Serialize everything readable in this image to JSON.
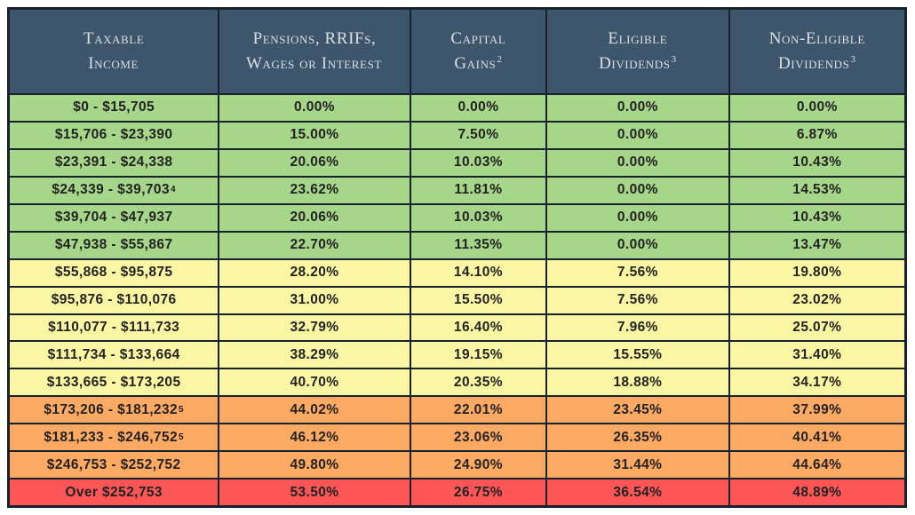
{
  "colors": {
    "header_bg": "#3e566c",
    "header_text": "#d9dfe4",
    "border": "#17222c",
    "band_green": "#a6d689",
    "band_yellow": "#fbf6a4",
    "band_orange": "#fca963",
    "band_red": "#fe5656",
    "data_text": "#222222",
    "page_bg": "#ffffff"
  },
  "chart_data": {
    "type": "table",
    "columns": [
      {
        "line1": "Taxable",
        "line2": "Income",
        "sup": ""
      },
      {
        "line1": "Pensions, RRIFs,",
        "line2": "Wages or Interest",
        "sup": ""
      },
      {
        "line1": "Capital",
        "line2": "Gains",
        "sup": "2"
      },
      {
        "line1": "Eligible",
        "line2": "Dividends",
        "sup": "3"
      },
      {
        "line1": "Non-Eligible",
        "line2": "Dividends",
        "sup": "3"
      }
    ],
    "rows": [
      {
        "band": "green",
        "income": "$0 - $15,705",
        "income_sup": "",
        "rates": [
          "0.00%",
          "0.00%",
          "0.00%",
          "0.00%"
        ]
      },
      {
        "band": "green",
        "income": "$15,706 - $23,390",
        "income_sup": "",
        "rates": [
          "15.00%",
          "7.50%",
          "0.00%",
          "6.87%"
        ]
      },
      {
        "band": "green",
        "income": "$23,391 - $24,338",
        "income_sup": "",
        "rates": [
          "20.06%",
          "10.03%",
          "0.00%",
          "10.43%"
        ]
      },
      {
        "band": "green",
        "income": "$24,339 - $39,703",
        "income_sup": "4",
        "rates": [
          "23.62%",
          "11.81%",
          "0.00%",
          "14.53%"
        ]
      },
      {
        "band": "green",
        "income": "$39,704 - $47,937",
        "income_sup": "",
        "rates": [
          "20.06%",
          "10.03%",
          "0.00%",
          "10.43%"
        ]
      },
      {
        "band": "green",
        "income": "$47,938 - $55,867",
        "income_sup": "",
        "rates": [
          "22.70%",
          "11.35%",
          "0.00%",
          "13.47%"
        ]
      },
      {
        "band": "yellow",
        "income": "$55,868 - $95,875",
        "income_sup": "",
        "rates": [
          "28.20%",
          "14.10%",
          "7.56%",
          "19.80%"
        ]
      },
      {
        "band": "yellow",
        "income": "$95,876 - $110,076",
        "income_sup": "",
        "rates": [
          "31.00%",
          "15.50%",
          "7.56%",
          "23.02%"
        ]
      },
      {
        "band": "yellow",
        "income": "$110,077 - $111,733",
        "income_sup": "",
        "rates": [
          "32.79%",
          "16.40%",
          "7.96%",
          "25.07%"
        ]
      },
      {
        "band": "yellow",
        "income": "$111,734 - $133,664",
        "income_sup": "",
        "rates": [
          "38.29%",
          "19.15%",
          "15.55%",
          "31.40%"
        ]
      },
      {
        "band": "yellow",
        "income": "$133,665 - $173,205",
        "income_sup": "",
        "rates": [
          "40.70%",
          "20.35%",
          "18.88%",
          "34.17%"
        ]
      },
      {
        "band": "orange",
        "income": "$173,206 - $181,232",
        "income_sup": "5",
        "rates": [
          "44.02%",
          "22.01%",
          "23.45%",
          "37.99%"
        ]
      },
      {
        "band": "orange",
        "income": "$181,233 - $246,752",
        "income_sup": "5",
        "rates": [
          "46.12%",
          "23.06%",
          "26.35%",
          "40.41%"
        ]
      },
      {
        "band": "orange",
        "income": "$246,753 - $252,752",
        "income_sup": "",
        "rates": [
          "49.80%",
          "24.90%",
          "31.44%",
          "44.64%"
        ]
      },
      {
        "band": "red",
        "income": "Over $252,753",
        "income_sup": "",
        "rates": [
          "53.50%",
          "26.75%",
          "36.54%",
          "48.89%"
        ]
      }
    ]
  }
}
